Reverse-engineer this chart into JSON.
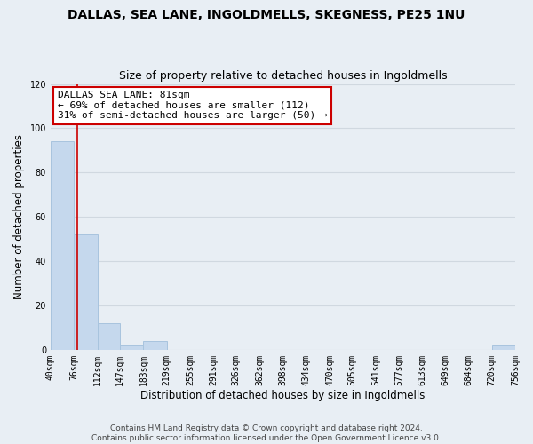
{
  "title": "DALLAS, SEA LANE, INGOLDMELLS, SKEGNESS, PE25 1NU",
  "subtitle": "Size of property relative to detached houses in Ingoldmells",
  "xlabel": "Distribution of detached houses by size in Ingoldmells",
  "ylabel": "Number of detached properties",
  "bar_color": "#c5d8ed",
  "bar_edge_color": "#a8c4de",
  "vline_color": "#cc0000",
  "vline_x": 81,
  "bin_edges": [
    40,
    76,
    112,
    147,
    183,
    219,
    255,
    291,
    326,
    362,
    398,
    434,
    470,
    505,
    541,
    577,
    613,
    649,
    684,
    720,
    756
  ],
  "bar_heights": [
    94,
    52,
    12,
    2,
    4,
    0,
    0,
    0,
    0,
    0,
    0,
    0,
    0,
    0,
    0,
    0,
    0,
    0,
    0,
    2
  ],
  "xlim": [
    40,
    756
  ],
  "ylim": [
    0,
    120
  ],
  "yticks": [
    0,
    20,
    40,
    60,
    80,
    100,
    120
  ],
  "xtick_labels": [
    "40sqm",
    "76sqm",
    "112sqm",
    "147sqm",
    "183sqm",
    "219sqm",
    "255sqm",
    "291sqm",
    "326sqm",
    "362sqm",
    "398sqm",
    "434sqm",
    "470sqm",
    "505sqm",
    "541sqm",
    "577sqm",
    "613sqm",
    "649sqm",
    "684sqm",
    "720sqm",
    "756sqm"
  ],
  "annotation_title": "DALLAS SEA LANE: 81sqm",
  "annotation_line1": "← 69% of detached houses are smaller (112)",
  "annotation_line2": "31% of semi-detached houses are larger (50) →",
  "annotation_box_color": "white",
  "annotation_box_edge_color": "#cc0000",
  "footer1": "Contains HM Land Registry data © Crown copyright and database right 2024.",
  "footer2": "Contains public sector information licensed under the Open Government Licence v3.0.",
  "background_color": "#e8eef4",
  "grid_color": "#d0d8e0",
  "title_fontsize": 10,
  "subtitle_fontsize": 9,
  "label_fontsize": 8.5,
  "tick_fontsize": 7,
  "footer_fontsize": 6.5,
  "annot_fontsize": 8
}
